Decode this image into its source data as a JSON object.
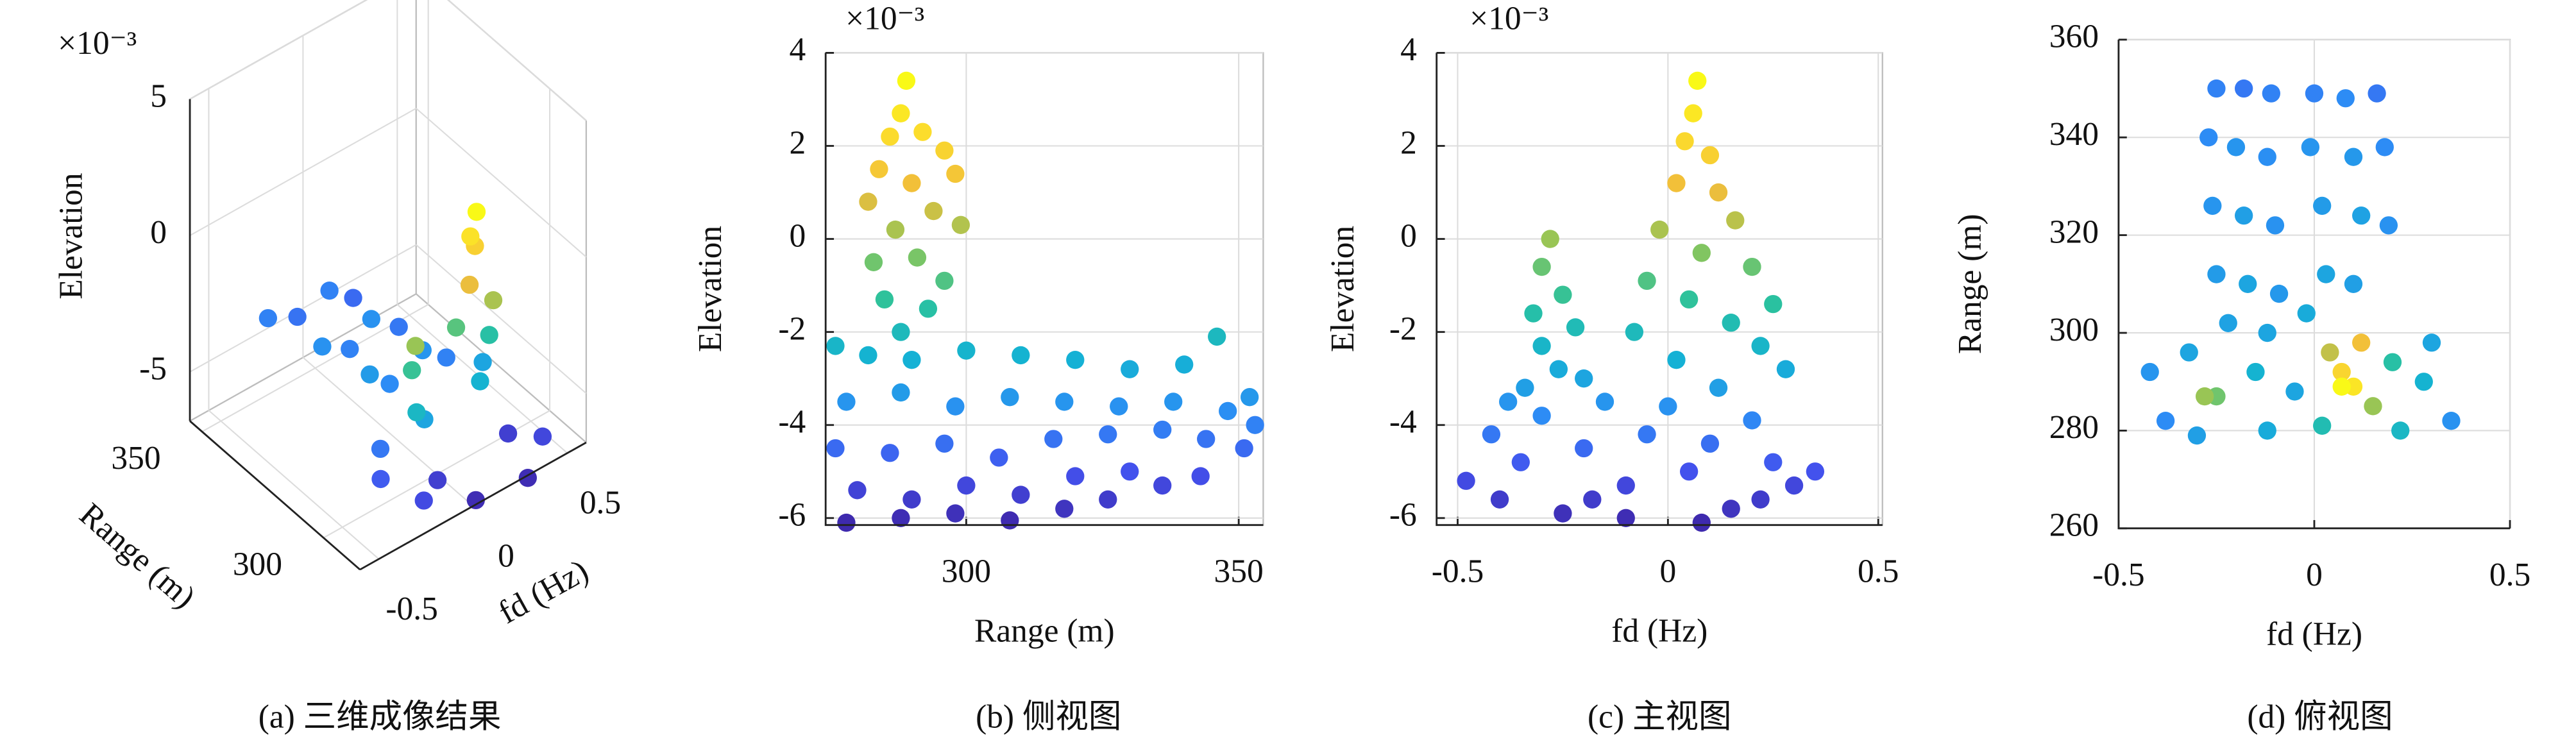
{
  "chart_data": [
    {
      "type": "scatter3d",
      "caption": "(a) 三维成像结果",
      "xlabel": "fd (Hz)",
      "ylabel": "Range (m)",
      "zlabel": "Elevation",
      "exponent_label": "×10⁻³",
      "xlim": [
        -0.6,
        0.6
      ],
      "ylim": [
        285,
        355
      ],
      "zlim": [
        -6.8,
        5
      ],
      "xticks": [
        -0.5,
        0,
        0.5
      ],
      "yticks": [
        300,
        350
      ],
      "zticks": [
        -5,
        0,
        5
      ],
      "grid": true,
      "colormap": [
        "#3e26a8",
        "#4352ee",
        "#2d8df5",
        "#14b2d4",
        "#2bc29e",
        "#8ec658",
        "#f1bd3b",
        "#fcdd2c",
        "#f9fb15"
      ],
      "clim": [
        -6.2,
        3.5
      ],
      "x": [
        -0.25,
        -0.12,
        0.05,
        0.15,
        -0.22,
        -0.1,
        0.04,
        0.16,
        -0.2,
        -0.12,
        0.08,
        0.18,
        -0.4,
        -0.35,
        -0.3,
        -0.15,
        0.25,
        0.33,
        -0.05,
        0.2,
        -0.22,
        -0.3,
        -0.26,
        -0.28,
        0.18,
        0.05,
        0.15,
        0.0,
        0.12,
        0.02,
        0.1,
        0.05,
        0.07
      ],
      "y": [
        350,
        348,
        348,
        346,
        330,
        328,
        330,
        328,
        312,
        310,
        312,
        310,
        292,
        296,
        282,
        288,
        290,
        282,
        280,
        278,
        288,
        285,
        290,
        287,
        295,
        286,
        290,
        292,
        286,
        288,
        292,
        290,
        289
      ],
      "z": [
        -4,
        -4.3,
        -4,
        -4.5,
        -3.6,
        -4,
        -3.6,
        -4.2,
        -3.3,
        -3.8,
        -3.5,
        -4,
        -4.8,
        -4.2,
        -5.2,
        -5.5,
        -5.5,
        -5.3,
        -6,
        -6,
        -3,
        -2.2,
        -1.2,
        0,
        -3,
        -2.5,
        -1.5,
        -0.8,
        0.2,
        1,
        1.8,
        2.5,
        3.4
      ]
    },
    {
      "type": "scatter",
      "caption": "(b) 侧视图",
      "xlabel": "Range (m)",
      "ylabel": "Elevation",
      "exponent_label": "×10⁻³",
      "xlim": [
        274.2,
        354.5
      ],
      "ylim": [
        -6.15,
        4
      ],
      "xticks": [
        300,
        350
      ],
      "yticks": [
        -6,
        -4,
        -2,
        0,
        2,
        4
      ],
      "grid": true,
      "colormap": [
        "#3e26a8",
        "#4352ee",
        "#2d8df5",
        "#14b2d4",
        "#2bc29e",
        "#8ec658",
        "#f1bd3b",
        "#fcdd2c",
        "#f9fb15"
      ],
      "clim": [
        -6.2,
        3.5
      ],
      "x": [
        278,
        288,
        298,
        308,
        318,
        326,
        336,
        280,
        290,
        300,
        310,
        320,
        330,
        343,
        276,
        286,
        296,
        306,
        316,
        326,
        336,
        344,
        351,
        278,
        288,
        298,
        308,
        318,
        328,
        338,
        348,
        353,
        352,
        276,
        282,
        290,
        300,
        310,
        320,
        330,
        340,
        346,
        288,
        293,
        285,
        296,
        291,
        283,
        299,
        287,
        294,
        282,
        298,
        290,
        284,
        296,
        292,
        286,
        288,
        289
      ],
      "y": [
        -6.1,
        -6,
        -5.9,
        -6.05,
        -5.8,
        -5.6,
        -5.3,
        -5.4,
        -5.6,
        -5.3,
        -5.5,
        -5.1,
        -5,
        -5.1,
        -4.5,
        -4.6,
        -4.4,
        -4.7,
        -4.3,
        -4.2,
        -4.1,
        -4.3,
        -4.5,
        -3.5,
        -3.3,
        -3.6,
        -3.4,
        -3.5,
        -3.6,
        -3.5,
        -3.7,
        -4,
        -3.4,
        -2.3,
        -2.5,
        -2.6,
        -2.4,
        -2.5,
        -2.6,
        -2.8,
        -2.7,
        -2.1,
        -2,
        -1.5,
        -1.3,
        -0.9,
        -0.4,
        -0.5,
        0.3,
        0.2,
        0.6,
        0.8,
        1.4,
        1.2,
        1.5,
        1.9,
        2.3,
        2.2,
        2.7,
        3.4
      ]
    },
    {
      "type": "scatter",
      "caption": "(c) 主视图",
      "xlabel": "fd (Hz)",
      "ylabel": "Elevation",
      "exponent_label": "×10⁻³",
      "xlim": [
        -0.55,
        0.51
      ],
      "ylim": [
        -6.15,
        4
      ],
      "xticks": [
        -0.5,
        0,
        0.5
      ],
      "yticks": [
        -6,
        -4,
        -2,
        0,
        2,
        4
      ],
      "grid": true,
      "colormap": [
        "#3e26a8",
        "#4352ee",
        "#2d8df5",
        "#14b2d4",
        "#2bc29e",
        "#8ec658",
        "#f1bd3b",
        "#fcdd2c",
        "#f9fb15"
      ],
      "clim": [
        -6.2,
        3.5
      ],
      "x": [
        -0.25,
        -0.1,
        0.08,
        0.22,
        -0.18,
        -0.48,
        -0.4,
        -0.1,
        0.15,
        0.3,
        0.05,
        0.35,
        -0.35,
        0.25,
        -0.2,
        0.1,
        -0.42,
        -0.05,
        0.2,
        0,
        -0.15,
        -0.3,
        -0.38,
        0.12,
        -0.34,
        -0.2,
        0.28,
        -0.26,
        0.02,
        -0.3,
        0.22,
        -0.22,
        -0.08,
        0.15,
        -0.32,
        0.25,
        0.05,
        -0.25,
        -0.05,
        0.2,
        0.08,
        -0.3,
        -0.02,
        0.16,
        0.12,
        0.02,
        0.1,
        0.04,
        0.06,
        -0.28,
        0.07
      ],
      "y": [
        -5.9,
        -6,
        -6.1,
        -5.6,
        -5.6,
        -5.2,
        -5.6,
        -5.3,
        -5.8,
        -5.3,
        -5,
        -5,
        -4.8,
        -4.8,
        -4.5,
        -4.4,
        -4.2,
        -4.2,
        -3.9,
        -3.6,
        -3.5,
        -3.8,
        -3.5,
        -3.2,
        -3.2,
        -3,
        -2.8,
        -2.8,
        -2.6,
        -2.3,
        -2.3,
        -1.9,
        -2,
        -1.8,
        -1.6,
        -1.4,
        -1.3,
        -1.2,
        -0.9,
        -0.6,
        -0.3,
        -0.6,
        0.2,
        0.4,
        1,
        1.2,
        1.8,
        2.1,
        2.7,
        0,
        3.4
      ]
    },
    {
      "type": "scatter",
      "caption": "(d) 俯视图",
      "xlabel": "fd (Hz)",
      "ylabel": "Range (m)",
      "xlim": [
        -0.5,
        0.5
      ],
      "ylim": [
        260,
        360
      ],
      "xticks": [
        -0.5,
        0,
        0.5
      ],
      "yticks": [
        260,
        280,
        300,
        320,
        340,
        360
      ],
      "grid": true,
      "colormap": [
        "#3e26a8",
        "#4352ee",
        "#2d8df5",
        "#14b2d4",
        "#2bc29e",
        "#8ec658",
        "#f1bd3b",
        "#fcdd2c",
        "#f9fb15"
      ],
      "clim": [
        -6.2,
        3.5
      ],
      "x": [
        -0.25,
        -0.18,
        -0.11,
        -0.27,
        -0.2,
        -0.12,
        -0.26,
        -0.18,
        -0.1,
        -0.25,
        -0.17,
        -0.09,
        -0.22,
        -0.12,
        0,
        0.08,
        0.16,
        -0.01,
        0.1,
        0.18,
        0.02,
        0.12,
        0.19,
        0.03,
        0.1,
        -0.02,
        -0.42,
        -0.38,
        -0.32,
        -0.3,
        -0.15,
        -0.12,
        -0.05,
        0.28,
        0.35,
        0.3,
        0.22,
        0.2,
        0.02,
        -0.25,
        -0.28,
        0.04,
        0.12,
        0.15,
        0.07,
        0.1,
        0.07
      ],
      "y": [
        350,
        350,
        349,
        340,
        338,
        336,
        326,
        324,
        322,
        312,
        310,
        308,
        302,
        300,
        349,
        348,
        349,
        338,
        336,
        338,
        326,
        324,
        322,
        312,
        310,
        304,
        292,
        282,
        296,
        279,
        292,
        280,
        288,
        290,
        282,
        298,
        280,
        294,
        281,
        287,
        287,
        296,
        298,
        285,
        292,
        289,
        289
      ],
      "c": [
        -4,
        -4.2,
        -4,
        -3.8,
        -3.5,
        -3.7,
        -3.5,
        -3.2,
        -3.6,
        -3.3,
        -3,
        -3.4,
        -3.1,
        -3,
        -4,
        -3.8,
        -4.2,
        -3.5,
        -3.4,
        -3.8,
        -3.3,
        -3.1,
        -3.6,
        -3,
        -3.2,
        -2.8,
        -3.5,
        -3.8,
        -3,
        -3.2,
        -2.5,
        -2.8,
        -3,
        -2.5,
        -3.6,
        -3,
        -2.2,
        -1.5,
        -1.8,
        -0.5,
        0,
        0.5,
        1.2,
        0,
        2,
        2.6,
        3.4
      ]
    }
  ]
}
